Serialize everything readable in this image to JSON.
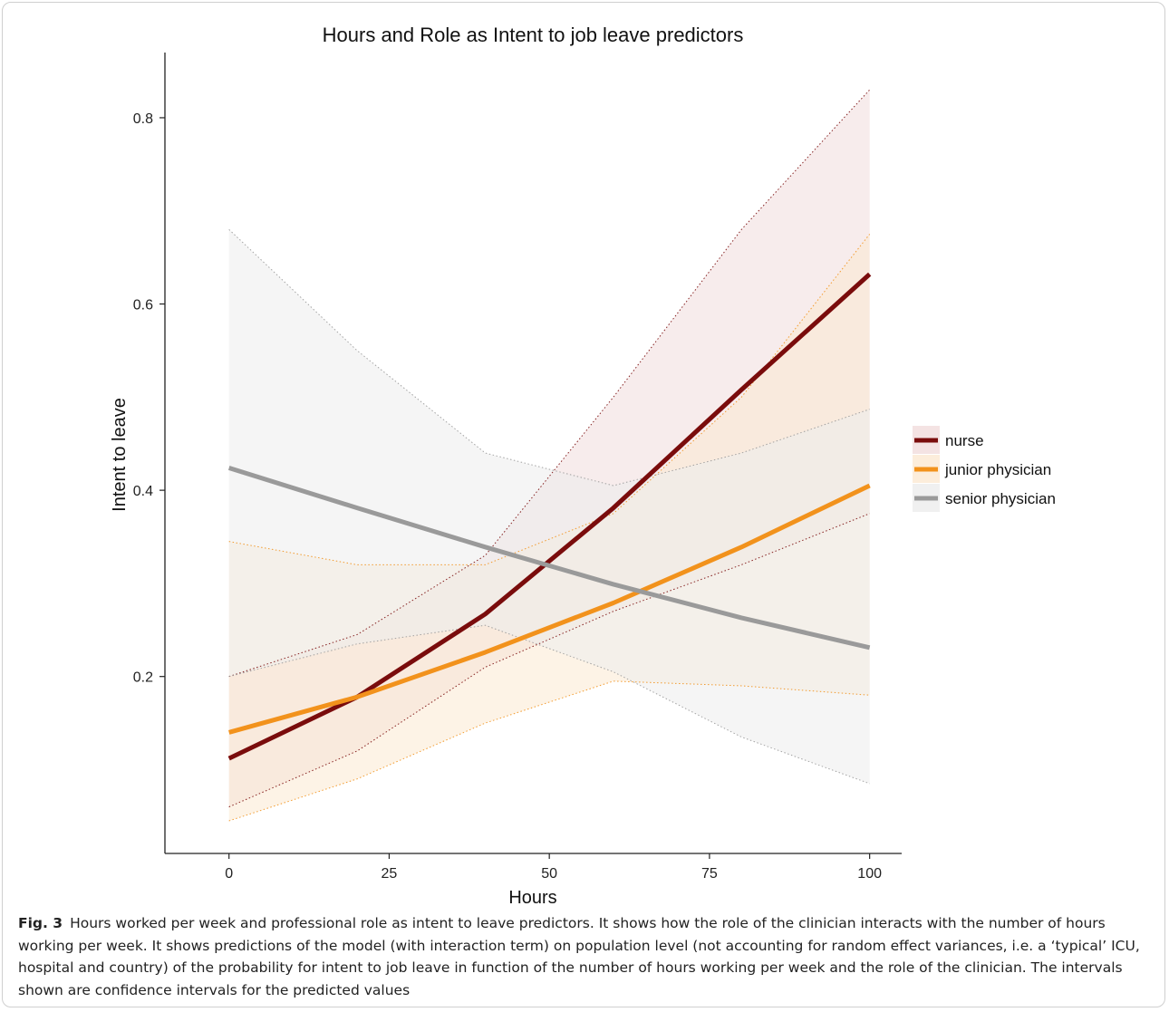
{
  "chart_data": {
    "type": "line",
    "title": "Hours and Role as Intent to job leave predictors",
    "xlabel": "Hours",
    "ylabel": "Intent to leave",
    "xlim": [
      -10,
      105
    ],
    "ylim": [
      0.01,
      0.87
    ],
    "xticks": [
      0,
      25,
      50,
      75,
      100
    ],
    "xtick_labels": [
      "0",
      "25",
      "50",
      "75",
      "100"
    ],
    "yticks": [
      0.2,
      0.4,
      0.6,
      0.8
    ],
    "ytick_labels": [
      "0.2",
      "0.4",
      "0.6",
      "0.8"
    ],
    "grid": false,
    "legend_position": "right",
    "x": [
      0,
      20,
      40,
      60,
      80,
      100
    ],
    "series": [
      {
        "name": "nurse",
        "color": "#7a0c0c",
        "band_color": "#f1dcdc",
        "values": [
          0.112,
          0.178,
          0.267,
          0.381,
          0.508,
          0.632
        ],
        "lower": [
          0.06,
          0.12,
          0.21,
          0.27,
          0.32,
          0.375
        ],
        "upper": [
          0.2,
          0.245,
          0.33,
          0.5,
          0.68,
          0.83
        ]
      },
      {
        "name": "junior physician",
        "color": "#f2921c",
        "band_color": "#fbe9d2",
        "values": [
          0.14,
          0.178,
          0.226,
          0.279,
          0.339,
          0.405
        ],
        "lower": [
          0.045,
          0.09,
          0.15,
          0.195,
          0.19,
          0.18
        ],
        "upper": [
          0.345,
          0.32,
          0.32,
          0.375,
          0.5,
          0.675
        ]
      },
      {
        "name": "senior physician",
        "color": "#9a9a9a",
        "band_color": "#ececec",
        "values": [
          0.424,
          0.381,
          0.339,
          0.299,
          0.263,
          0.231
        ],
        "lower": [
          0.2,
          0.235,
          0.255,
          0.205,
          0.135,
          0.085
        ],
        "upper": [
          0.68,
          0.55,
          0.44,
          0.405,
          0.44,
          0.487
        ]
      }
    ]
  },
  "caption": {
    "label": "Fig. 3",
    "text": "Hours worked per week and professional role as intent to leave predictors. It shows how the role of the clinician interacts with the number of hours working per week. It shows predictions of the model (with interaction term) on population level (not accounting for random effect variances, i.e. a ‘typical’ ICU, hospital and country) of the probability for intent to job leave in function of the number of hours working per week and the role of the clinician. The intervals shown are confidence intervals for the predicted values"
  }
}
